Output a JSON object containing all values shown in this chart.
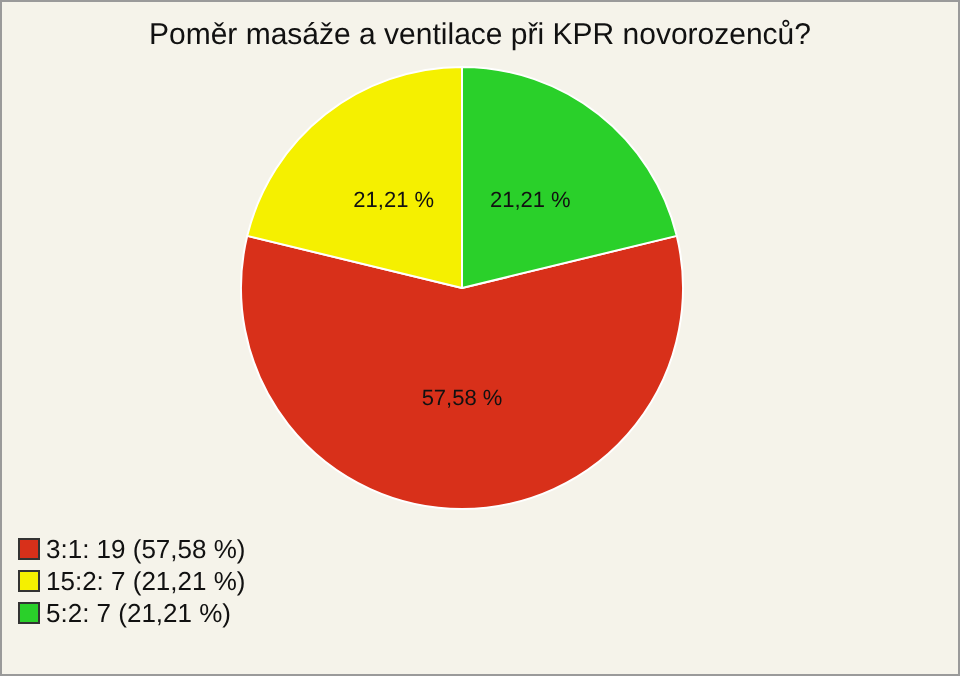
{
  "chart_data": {
    "type": "pie",
    "title": "Poměr masáže a ventilace při KPR novorozenců?",
    "categories": [
      "3:1: 19 (57,58 %)",
      "15:2: 7 (21,21 %)",
      "5:2: 7 (21,21 %)"
    ],
    "values": [
      57.58,
      21.21,
      21.21
    ],
    "value_labels": [
      "57,58 %",
      "21,21 %",
      "21,21 %"
    ],
    "colors": [
      "#d8301a",
      "#f5f000",
      "#2ad02a"
    ],
    "legend": "bottom left"
  }
}
